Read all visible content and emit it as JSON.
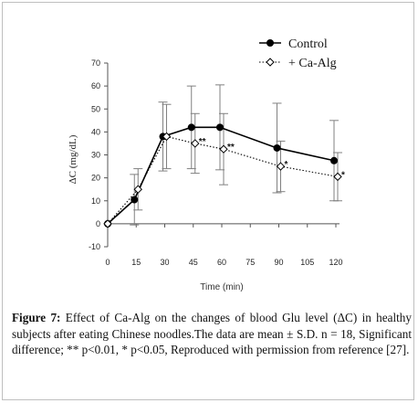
{
  "chart_data": {
    "type": "line",
    "xlabel": "Time (min)",
    "ylabel": "ΔC (mg/dL)",
    "x": [
      0,
      15,
      30,
      45,
      60,
      90,
      120
    ],
    "x_ticks": [
      "0",
      "15",
      "30",
      "45",
      "60",
      "75",
      "90",
      "105",
      "120"
    ],
    "y_ticks": [
      "-10",
      "0",
      "10",
      "20",
      "30",
      "40",
      "50",
      "60",
      "70"
    ],
    "xlim": [
      0,
      120
    ],
    "ylim": [
      -10,
      70
    ],
    "grid": false,
    "legend_position": "top-right",
    "series": [
      {
        "name": "Control",
        "style": "solid line, filled circle markers",
        "color": "#000000",
        "values": [
          0,
          10.5,
          38,
          42,
          42,
          33,
          27.5
        ],
        "error": [
          0,
          11,
          15,
          18,
          18.5,
          19.5,
          17.5
        ]
      },
      {
        "name": "+ Ca-Alg",
        "style": "dotted line, open diamond markers",
        "color": "#000000",
        "values": [
          0,
          15,
          38,
          35,
          32.5,
          25,
          20.5
        ],
        "error": [
          0,
          9,
          14,
          13,
          15.5,
          11,
          10.5
        ]
      }
    ],
    "annotations": [
      {
        "text": "**",
        "x": 45,
        "series": "+ Ca-Alg"
      },
      {
        "text": "**",
        "x": 60,
        "series": "+ Ca-Alg"
      },
      {
        "text": "*",
        "x": 90,
        "series": "+ Ca-Alg"
      },
      {
        "text": "*",
        "x": 120,
        "series": "+ Ca-Alg"
      }
    ]
  },
  "caption": {
    "label": "Figure 7:",
    "text": "Effect of Ca-Alg on the changes of blood Glu level (ΔC) in healthy subjects after eating Chinese noodles.The data are mean ± S.D. n = 18, Significant difference; ** p<0.01, * p<0.05, Reproduced with permission from reference [27]."
  }
}
